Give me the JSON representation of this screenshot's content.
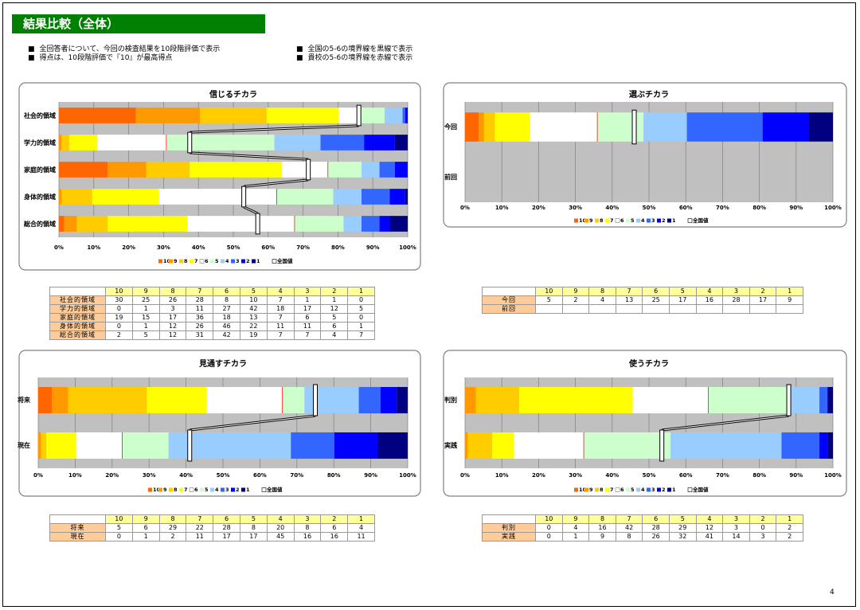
{
  "header": {
    "title": "結果比較（全体）"
  },
  "notes": [
    "全回答者について、今回の検査結果を10段階評価で表示",
    "得点は、10段階評価で『10』が最高得点",
    "全国の5-6の境界線を黒線で表示",
    "貴校の5-6の境界線を赤線で表示"
  ],
  "chart_data": [
    {
      "type": "bar",
      "orientation": "horizontal",
      "stacking": "percent",
      "title": "信じるチカラ",
      "categories": [
        "社会的領域",
        "学力的領域",
        "家庭的領域",
        "身体的領域",
        "総合的領域"
      ],
      "series": [
        {
          "name": "10",
          "color": "#ff6600",
          "values": [
            30,
            0,
            19,
            0,
            2
          ]
        },
        {
          "name": "9",
          "color": "#ff9900",
          "values": [
            25,
            1,
            15,
            1,
            5
          ]
        },
        {
          "name": "8",
          "color": "#ffcc00",
          "values": [
            26,
            3,
            17,
            12,
            12
          ]
        },
        {
          "name": "7",
          "color": "#ffff00",
          "values": [
            28,
            11,
            36,
            26,
            31
          ]
        },
        {
          "name": "6",
          "color": "#ffffff",
          "values": [
            8,
            27,
            18,
            46,
            42
          ]
        },
        {
          "name": "5",
          "color": "#ccffcc",
          "values": [
            10,
            42,
            13,
            22,
            19
          ]
        },
        {
          "name": "4",
          "color": "#99ccff",
          "values": [
            7,
            18,
            7,
            11,
            7
          ]
        },
        {
          "name": "3",
          "color": "#3366ff",
          "values": [
            1,
            17,
            6,
            11,
            7
          ]
        },
        {
          "name": "2",
          "color": "#0000ff",
          "values": [
            1,
            12,
            5,
            6,
            4
          ]
        },
        {
          "name": "1",
          "color": "#000080",
          "values": [
            0,
            5,
            0,
            1,
            7
          ]
        }
      ],
      "boundary": {
        "name": "全国値",
        "color": "#000000",
        "values": [
          86,
          37.5,
          71.5,
          53,
          57
        ]
      },
      "school_line_color": "#ff0000",
      "xlim": [
        0,
        100
      ],
      "xticks": [
        {
          "value": 0,
          "label": "0%"
        },
        {
          "value": 10,
          "label": "10%"
        },
        {
          "value": 20,
          "label": "20%"
        },
        {
          "value": 30,
          "label": "30%"
        },
        {
          "value": 40,
          "label": "40%"
        },
        {
          "value": 50,
          "label": "50%"
        },
        {
          "value": 60,
          "label": "60%"
        },
        {
          "value": 70,
          "label": "70%"
        },
        {
          "value": 80,
          "label": "80%"
        },
        {
          "value": 90,
          "label": "90%"
        },
        {
          "value": 100,
          "label": "100%"
        }
      ],
      "grid": true,
      "legend": "bottom"
    },
    {
      "type": "bar",
      "orientation": "horizontal",
      "stacking": "percent",
      "title": "選ぶチカラ",
      "categories": [
        "今回",
        "前回"
      ],
      "series": [
        {
          "name": "10",
          "color": "#ff6600",
          "values": [
            5,
            null
          ]
        },
        {
          "name": "9",
          "color": "#ff9900",
          "values": [
            2,
            null
          ]
        },
        {
          "name": "8",
          "color": "#ffcc00",
          "values": [
            4,
            null
          ]
        },
        {
          "name": "7",
          "color": "#ffff00",
          "values": [
            13,
            null
          ]
        },
        {
          "name": "6",
          "color": "#ffffff",
          "values": [
            25,
            null
          ]
        },
        {
          "name": "5",
          "color": "#ccffcc",
          "values": [
            17,
            null
          ]
        },
        {
          "name": "4",
          "color": "#99ccff",
          "values": [
            16,
            null
          ]
        },
        {
          "name": "3",
          "color": "#3366ff",
          "values": [
            28,
            null
          ]
        },
        {
          "name": "2",
          "color": "#0000ff",
          "values": [
            17,
            null
          ]
        },
        {
          "name": "1",
          "color": "#000080",
          "values": [
            9,
            null
          ]
        }
      ],
      "boundary": {
        "name": "全国値",
        "color": "#000000",
        "values": [
          46,
          null
        ]
      },
      "school_line_color": "#ff0000",
      "xlim": [
        0,
        100
      ],
      "xticks": [
        {
          "value": 0,
          "label": "0%"
        },
        {
          "value": 10,
          "label": "10%"
        },
        {
          "value": 20,
          "label": "20%"
        },
        {
          "value": 30,
          "label": "30%"
        },
        {
          "value": 40,
          "label": "40%"
        },
        {
          "value": 50,
          "label": "50%"
        },
        {
          "value": 60,
          "label": "60%"
        },
        {
          "value": 70,
          "label": "70%"
        },
        {
          "value": 80,
          "label": "80%"
        },
        {
          "value": 90,
          "label": "90%"
        },
        {
          "value": 100,
          "label": "100%"
        }
      ],
      "grid": true,
      "legend": "bottom"
    },
    {
      "type": "bar",
      "orientation": "horizontal",
      "stacking": "percent",
      "title": "見通すチカラ",
      "categories": [
        "将来",
        "現在"
      ],
      "series": [
        {
          "name": "10",
          "color": "#ff6600",
          "values": [
            5,
            0
          ]
        },
        {
          "name": "9",
          "color": "#ff9900",
          "values": [
            6,
            1
          ]
        },
        {
          "name": "8",
          "color": "#ffcc00",
          "values": [
            29,
            2
          ]
        },
        {
          "name": "7",
          "color": "#ffff00",
          "values": [
            22,
            11
          ]
        },
        {
          "name": "6",
          "color": "#ffffff",
          "values": [
            28,
            17
          ]
        },
        {
          "name": "5",
          "color": "#ccffcc",
          "values": [
            8,
            17
          ]
        },
        {
          "name": "4",
          "color": "#99ccff",
          "values": [
            20,
            45
          ]
        },
        {
          "name": "3",
          "color": "#3366ff",
          "values": [
            8,
            16
          ]
        },
        {
          "name": "2",
          "color": "#0000ff",
          "values": [
            6,
            16
          ]
        },
        {
          "name": "1",
          "color": "#000080",
          "values": [
            4,
            11
          ]
        }
      ],
      "boundary": {
        "name": "全国値",
        "color": "#000000",
        "values": [
          75,
          41
        ]
      },
      "school_line_color": "#ff0000",
      "xlim": [
        0,
        100
      ],
      "xticks": [
        {
          "value": 0,
          "label": "0%"
        },
        {
          "value": 10,
          "label": "10%"
        },
        {
          "value": 20,
          "label": "20%"
        },
        {
          "value": 30,
          "label": "30%"
        },
        {
          "value": 40,
          "label": "40%"
        },
        {
          "value": 50,
          "label": "50%"
        },
        {
          "value": 60,
          "label": "60%"
        },
        {
          "value": 70,
          "label": "70%"
        },
        {
          "value": 80,
          "label": "80%"
        },
        {
          "value": 90,
          "label": "90%"
        },
        {
          "value": 100,
          "label": "100%"
        }
      ],
      "grid": true,
      "legend": "bottom"
    },
    {
      "type": "bar",
      "orientation": "horizontal",
      "stacking": "percent",
      "title": "使うチカラ",
      "categories": [
        "判別",
        "実践"
      ],
      "series": [
        {
          "name": "10",
          "color": "#ff6600",
          "values": [
            0,
            0
          ]
        },
        {
          "name": "9",
          "color": "#ff9900",
          "values": [
            4,
            1
          ]
        },
        {
          "name": "8",
          "color": "#ffcc00",
          "values": [
            16,
            9
          ]
        },
        {
          "name": "7",
          "color": "#ffff00",
          "values": [
            42,
            8
          ]
        },
        {
          "name": "6",
          "color": "#ffffff",
          "values": [
            28,
            26
          ]
        },
        {
          "name": "5",
          "color": "#ccffcc",
          "values": [
            29,
            32
          ]
        },
        {
          "name": "4",
          "color": "#99ccff",
          "values": [
            12,
            41
          ]
        },
        {
          "name": "3",
          "color": "#3366ff",
          "values": [
            3,
            14
          ]
        },
        {
          "name": "2",
          "color": "#0000ff",
          "values": [
            0,
            3
          ]
        },
        {
          "name": "1",
          "color": "#000080",
          "values": [
            2,
            2
          ]
        }
      ],
      "boundary": {
        "name": "全国値",
        "color": "#000000",
        "values": [
          88,
          53.5
        ]
      },
      "school_line_color": "#ff0000",
      "xlim": [
        0,
        100
      ],
      "xticks": [
        {
          "value": 0,
          "label": "0%"
        },
        {
          "value": 10,
          "label": "10%"
        },
        {
          "value": 20,
          "label": "20%"
        },
        {
          "value": 30,
          "label": "30%"
        },
        {
          "value": 40,
          "label": "40%"
        },
        {
          "value": 50,
          "label": "50%"
        },
        {
          "value": 60,
          "label": "60%"
        },
        {
          "value": 70,
          "label": "70%"
        },
        {
          "value": 80,
          "label": "80%"
        },
        {
          "value": 90,
          "label": "90%"
        },
        {
          "value": 100,
          "label": "100%"
        }
      ],
      "grid": true,
      "legend": "bottom"
    }
  ],
  "page_number": 4
}
